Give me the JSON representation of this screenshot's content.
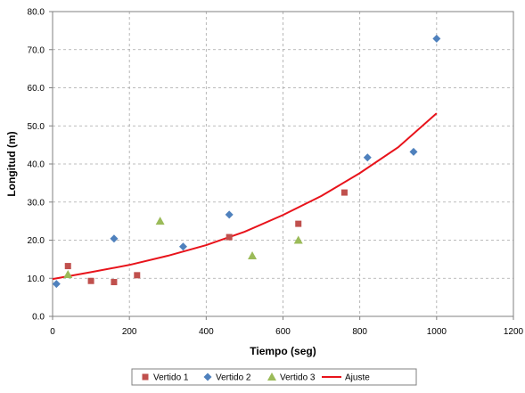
{
  "chart_data": {
    "type": "scatter",
    "title": "",
    "xlabel": "Tiempo (seg)",
    "ylabel": "Longitud (m)",
    "xlim": [
      0,
      1200
    ],
    "ylim": [
      0,
      80
    ],
    "xticks": [
      0,
      200,
      400,
      600,
      800,
      1000,
      1200
    ],
    "yticks": [
      0,
      10,
      20,
      30,
      40,
      50,
      60,
      70,
      80
    ],
    "x_tick_labels": [
      "0",
      "200",
      "400",
      "600",
      "800",
      "1000",
      "1200"
    ],
    "y_tick_labels": [
      "0.0",
      "10.0",
      "20.0",
      "30.0",
      "40.0",
      "50.0",
      "60.0",
      "70.0",
      "80.0"
    ],
    "grid": "dashed",
    "legend_position": "bottom",
    "series": [
      {
        "name": "Vertido 1",
        "marker": "square",
        "color": "#C0504D",
        "points": [
          [
            40,
            13.2
          ],
          [
            100,
            9.3
          ],
          [
            160,
            9.0
          ],
          [
            220,
            10.8
          ],
          [
            460,
            20.8
          ],
          [
            640,
            24.3
          ],
          [
            760,
            32.5
          ]
        ]
      },
      {
        "name": "Vertido 2",
        "marker": "diamond",
        "color": "#4F81BD",
        "points": [
          [
            10,
            8.5
          ],
          [
            160,
            20.4
          ],
          [
            340,
            18.3
          ],
          [
            460,
            26.7
          ],
          [
            820,
            41.7
          ],
          [
            940,
            43.2
          ],
          [
            1000,
            72.9
          ]
        ]
      },
      {
        "name": "Vertido 3",
        "marker": "triangle",
        "color": "#9BBB59",
        "points": [
          [
            40,
            11.0
          ],
          [
            280,
            25.0
          ],
          [
            520,
            15.9
          ],
          [
            640,
            20.0
          ]
        ]
      },
      {
        "name": "Ajuste",
        "marker": "line",
        "color": "#E8131B",
        "points": [
          [
            0,
            9.8
          ],
          [
            100,
            11.6
          ],
          [
            200,
            13.5
          ],
          [
            300,
            15.9
          ],
          [
            400,
            18.7
          ],
          [
            500,
            22.2
          ],
          [
            600,
            26.6
          ],
          [
            700,
            31.6
          ],
          [
            800,
            37.6
          ],
          [
            900,
            44.4
          ],
          [
            1000,
            53.3
          ]
        ]
      }
    ]
  }
}
